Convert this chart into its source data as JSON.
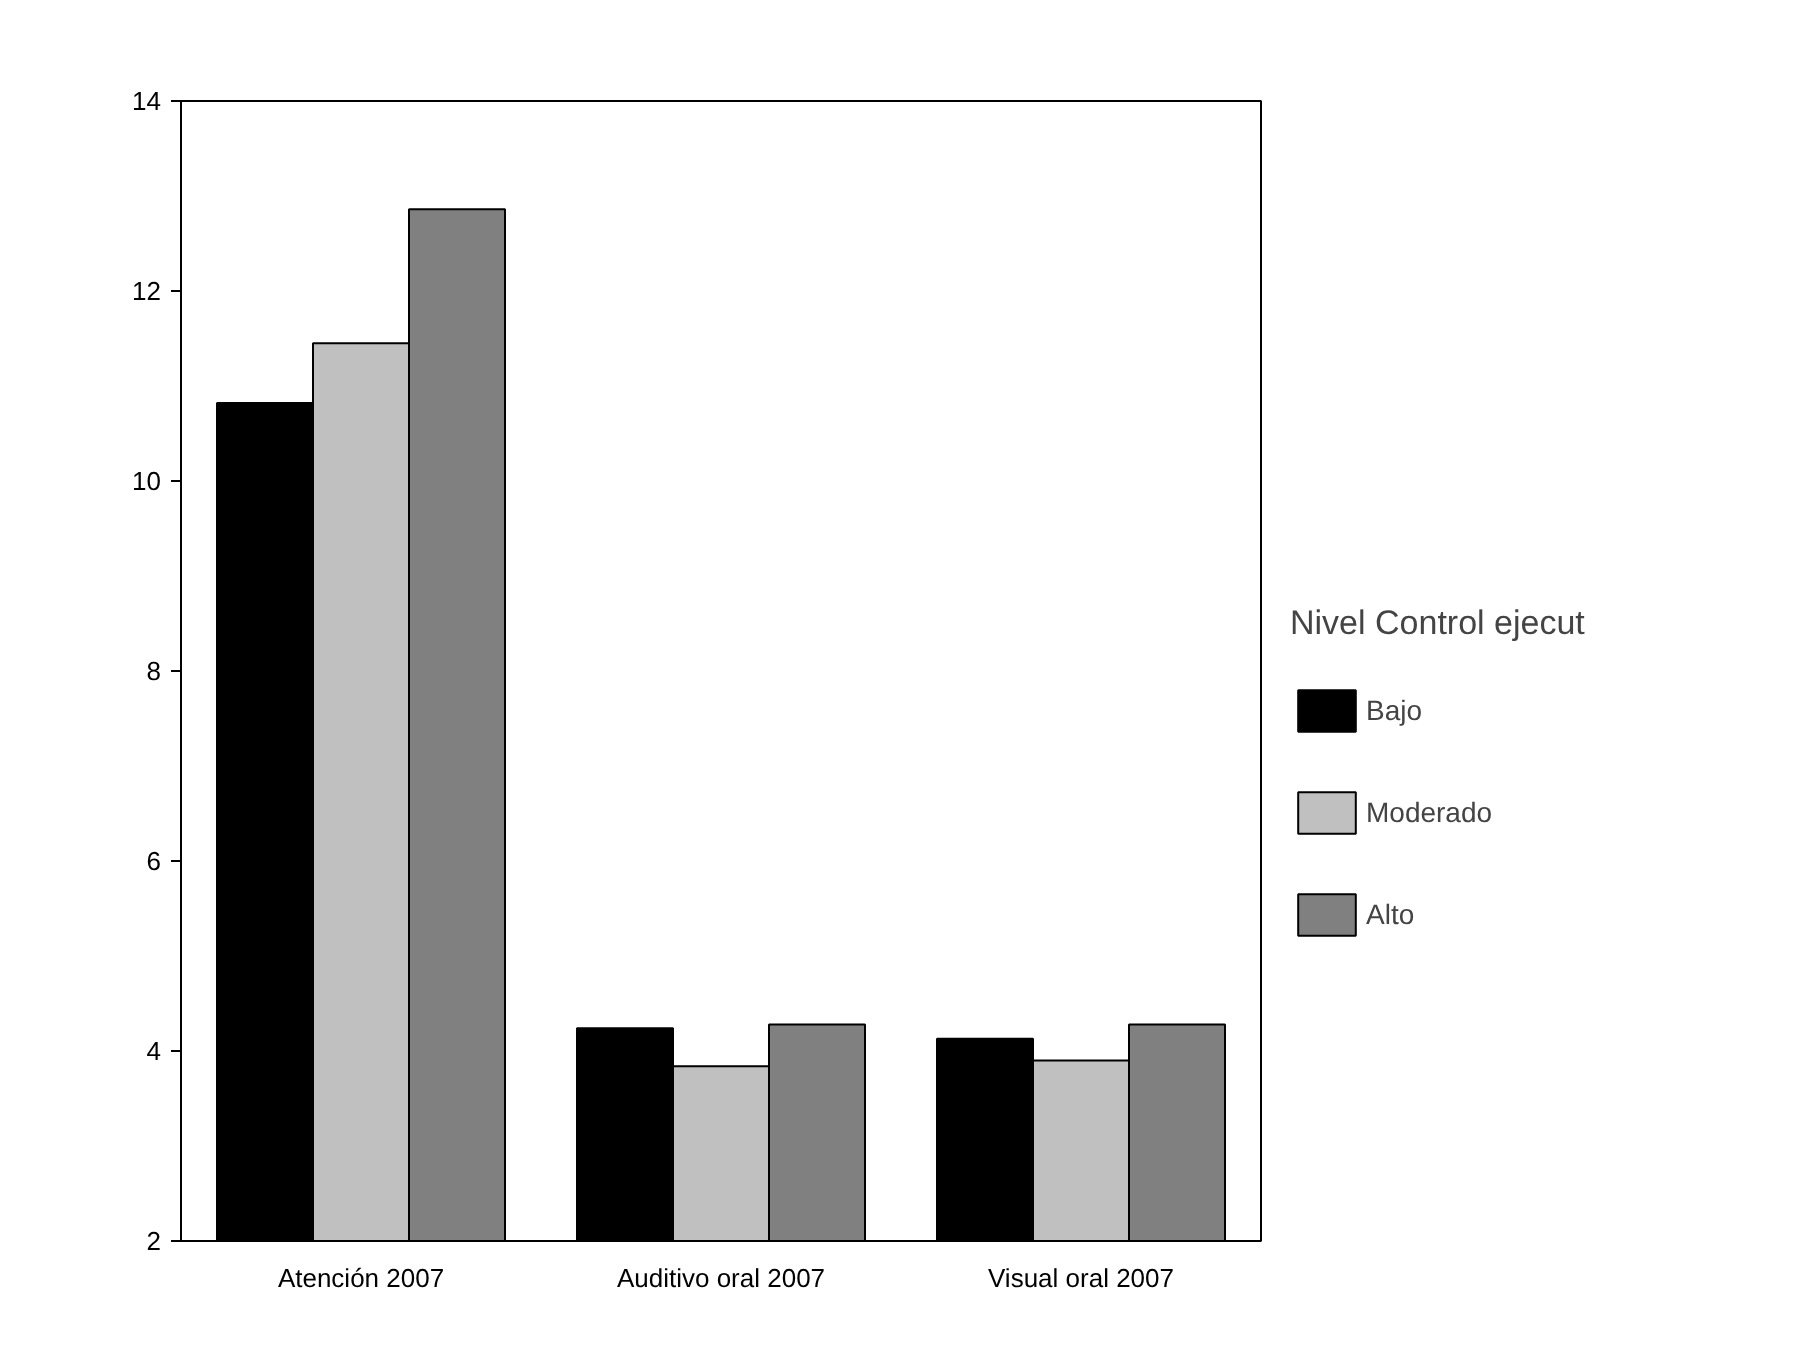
{
  "chart_data": {
    "type": "bar",
    "categories": [
      "Atención 2007",
      "Auditivo oral 2007",
      "Visual oral 2007"
    ],
    "legend_title": "Nivel Control ejecut",
    "legend": "right",
    "grid": false,
    "ylim": [
      2,
      14
    ],
    "yticks": [
      2,
      4,
      6,
      8,
      10,
      12,
      14
    ],
    "series": [
      {
        "name": "Bajo",
        "color": "#000000",
        "values": [
          10.82,
          4.24,
          4.13
        ]
      },
      {
        "name": "Moderado",
        "color": "#c0c0c0",
        "values": [
          11.45,
          3.84,
          3.9
        ]
      },
      {
        "name": "Alto",
        "color": "#808080",
        "values": [
          12.86,
          4.28,
          4.28
        ]
      }
    ]
  }
}
